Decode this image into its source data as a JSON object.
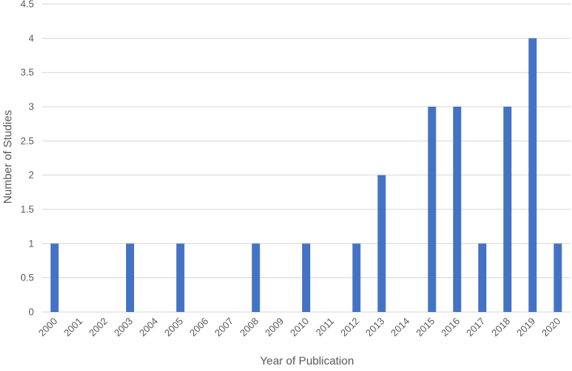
{
  "chart_data": {
    "type": "bar",
    "title": "",
    "xlabel": "Year of Publication",
    "ylabel": "Number of Studies",
    "categories": [
      "2000",
      "2001",
      "2002",
      "2003",
      "2004",
      "2005",
      "2006",
      "2007",
      "2008",
      "2009",
      "2010",
      "2011",
      "2012",
      "2013",
      "2014",
      "2015",
      "2016",
      "2017",
      "2018",
      "2019",
      "2020"
    ],
    "values": [
      1,
      0,
      0,
      1,
      0,
      1,
      0,
      0,
      1,
      0,
      1,
      0,
      1,
      2,
      0,
      3,
      3,
      1,
      3,
      4,
      1
    ],
    "ylim": [
      0,
      4.5
    ],
    "yticks": [
      "0",
      "0.5",
      "1",
      "1.5",
      "2",
      "2.5",
      "3",
      "3.5",
      "4",
      "4.5"
    ],
    "grid": true,
    "legend": "none",
    "colors": {
      "bar": "#4472C4",
      "grid": "#D9D9D9",
      "text": "#595959"
    }
  }
}
